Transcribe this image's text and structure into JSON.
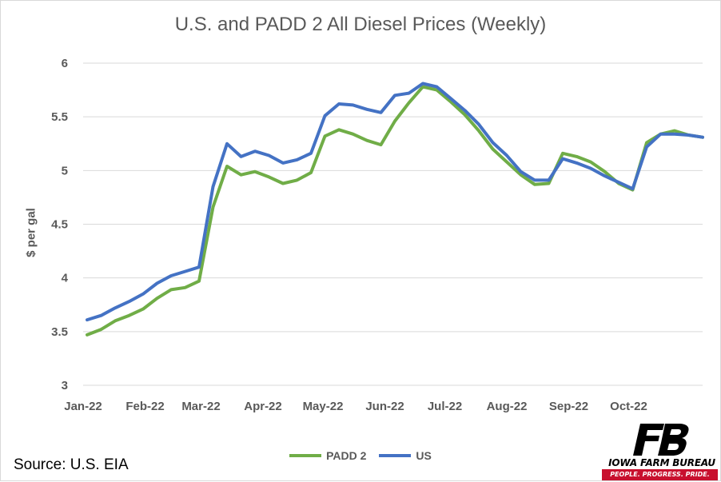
{
  "chart_data": {
    "type": "line",
    "title": "U.S. and PADD 2 All Diesel Prices (Weekly)",
    "xlabel": "",
    "ylabel": "$ per gal",
    "ylim": [
      3,
      6
    ],
    "yticks": [
      "3",
      "3.5",
      "4",
      "4.5",
      "5",
      "5.5",
      "6"
    ],
    "xticks": [
      "Jan-22",
      "Feb-22",
      "Mar-22",
      "Apr-22",
      "May-22",
      "Jun-22",
      "Jul-22",
      "Aug-22",
      "Sep-22",
      "Oct-22"
    ],
    "grid": "horizontal",
    "legend_position": "bottom",
    "x": [
      "2022-01-03",
      "2022-01-10",
      "2022-01-17",
      "2022-01-24",
      "2022-01-31",
      "2022-02-07",
      "2022-02-14",
      "2022-02-21",
      "2022-02-28",
      "2022-03-07",
      "2022-03-14",
      "2022-03-21",
      "2022-03-28",
      "2022-04-04",
      "2022-04-11",
      "2022-04-18",
      "2022-04-25",
      "2022-05-02",
      "2022-05-09",
      "2022-05-16",
      "2022-05-23",
      "2022-05-30",
      "2022-06-06",
      "2022-06-13",
      "2022-06-20",
      "2022-06-27",
      "2022-07-04",
      "2022-07-11",
      "2022-07-18",
      "2022-07-25",
      "2022-08-01",
      "2022-08-08",
      "2022-08-15",
      "2022-08-22",
      "2022-08-29",
      "2022-09-05",
      "2022-09-12",
      "2022-09-19",
      "2022-09-26",
      "2022-10-03",
      "2022-10-10",
      "2022-10-17",
      "2022-10-24",
      "2022-10-31",
      "2022-11-07"
    ],
    "series": [
      {
        "name": "PADD 2",
        "color": "#70ad47",
        "values": [
          3.47,
          3.52,
          3.6,
          3.65,
          3.71,
          3.81,
          3.89,
          3.91,
          3.97,
          4.66,
          5.04,
          4.96,
          4.99,
          4.94,
          4.88,
          4.91,
          4.98,
          5.32,
          5.38,
          5.34,
          5.28,
          5.24,
          5.46,
          5.63,
          5.78,
          5.75,
          5.64,
          5.52,
          5.37,
          5.2,
          5.08,
          4.96,
          4.87,
          4.88,
          5.16,
          5.13,
          5.08,
          4.99,
          4.88,
          4.82,
          5.26,
          5.34,
          5.37,
          5.33,
          5.31
        ]
      },
      {
        "name": "US",
        "color": "#4472c4",
        "values": [
          3.61,
          3.65,
          3.72,
          3.78,
          3.85,
          3.95,
          4.02,
          4.06,
          4.1,
          4.85,
          5.25,
          5.13,
          5.18,
          5.14,
          5.07,
          5.1,
          5.16,
          5.51,
          5.62,
          5.61,
          5.57,
          5.54,
          5.7,
          5.72,
          5.81,
          5.78,
          5.67,
          5.56,
          5.43,
          5.26,
          5.14,
          4.99,
          4.91,
          4.91,
          5.11,
          5.07,
          5.02,
          4.95,
          4.89,
          4.83,
          5.22,
          5.34,
          5.34,
          5.33,
          5.31
        ]
      }
    ]
  },
  "footer": {
    "source": "Source: U.S. EIA"
  },
  "logo": {
    "name": "IOWA FARM BUREAU",
    "tagline": "PEOPLE. PROGRESS. PRIDE.",
    "color": "#c8102e"
  }
}
